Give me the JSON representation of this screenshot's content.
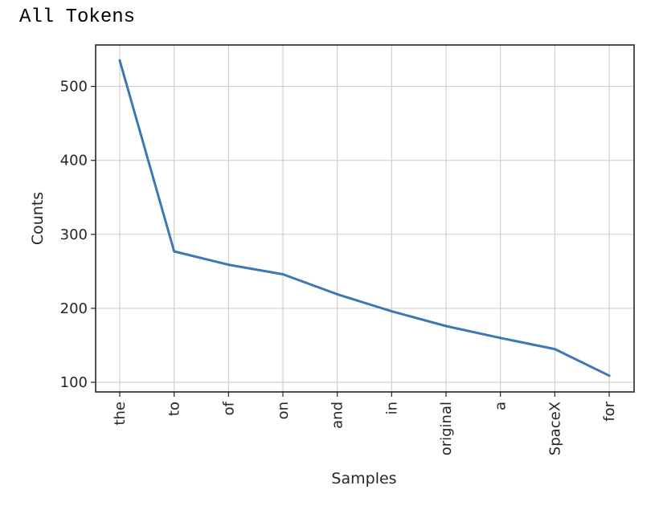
{
  "page": {
    "heading": "All Tokens"
  },
  "chart_data": {
    "type": "line",
    "title": "All Tokens",
    "xlabel": "Samples",
    "ylabel": "Counts",
    "categories": [
      "the",
      "to",
      "of",
      "on",
      "and",
      "in",
      "original",
      "a",
      "SpaceX",
      "for"
    ],
    "series": [
      {
        "name": "Counts",
        "values": [
          535,
          277,
          259,
          246,
          219,
          196,
          176,
          160,
          145,
          109
        ]
      }
    ],
    "ylim": [
      87,
      556
    ],
    "yticks": [
      100,
      200,
      300,
      400,
      500
    ],
    "ytick_labels": [
      "100",
      "200",
      "300",
      "400",
      "500"
    ],
    "grid": true,
    "line_color": "#3f77b2",
    "grid_color": "#d0d0d0",
    "frame_color": "#262626"
  }
}
